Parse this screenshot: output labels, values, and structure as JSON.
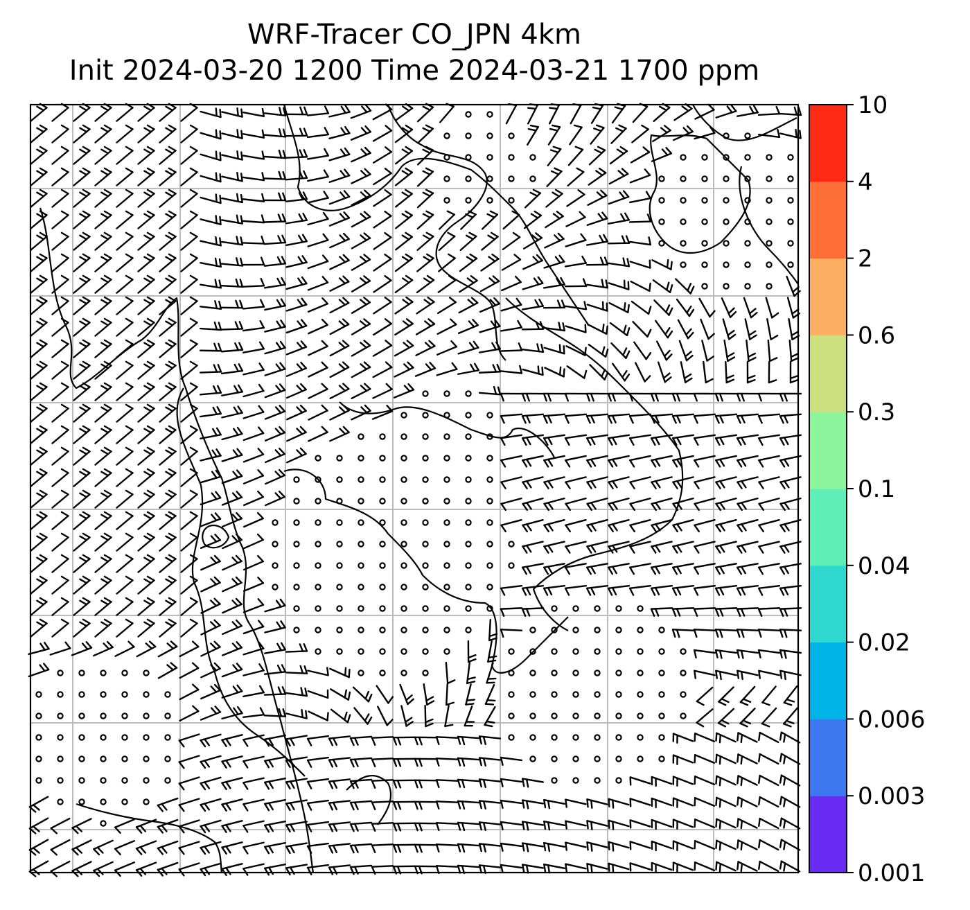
{
  "title": {
    "line1": "WRF-Tracer CO_JPN 4km",
    "line2": "Init 2024-03-20 1200 Time 2024-03-21 1700 ppm"
  },
  "colorbar": {
    "unit": "ppm",
    "ticks": [
      "0.001",
      "0.003",
      "0.006",
      "0.02",
      "0.04",
      "0.1",
      "0.3",
      "0.6",
      "2",
      "4",
      "10"
    ],
    "colors": [
      "#6a2cf5",
      "#3c78f0",
      "#00b4e8",
      "#2ed8cf",
      "#5ef0b8",
      "#8df59b",
      "#cde07f",
      "#fdb063",
      "#ff7038",
      "#ff2a14"
    ]
  },
  "map": {
    "background_color": "#ffffff",
    "coastline_color": "#000000",
    "gridline_color": "#bbbbbb",
    "wind_barb_color": "#000000",
    "calm_symbol": "open-circle"
  }
}
